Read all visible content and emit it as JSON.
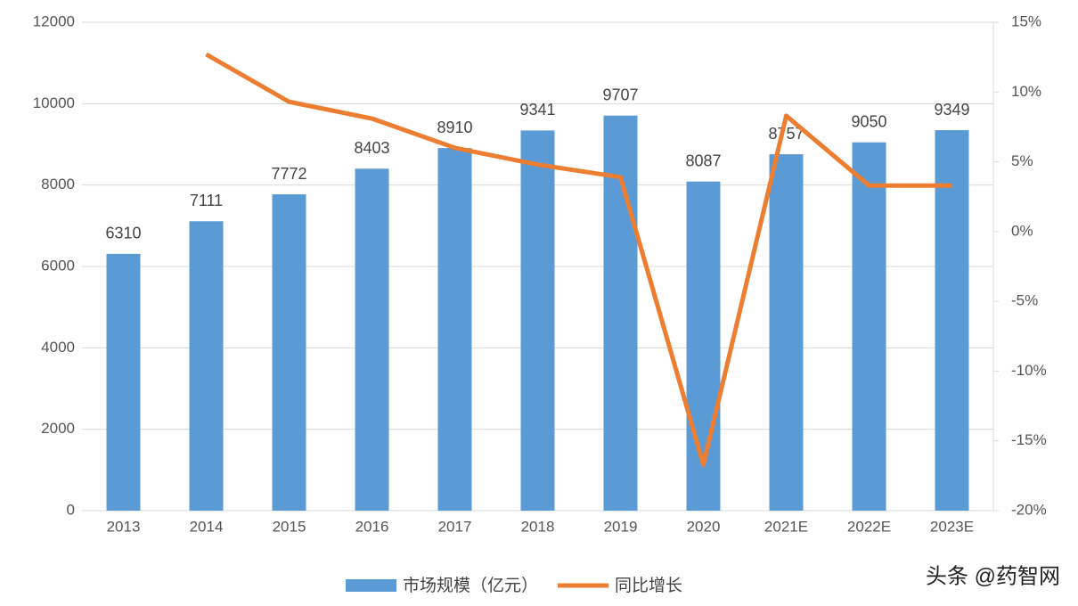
{
  "chart_data": {
    "type": "bar",
    "categories": [
      "2013",
      "2014",
      "2015",
      "2016",
      "2017",
      "2018",
      "2019",
      "2020",
      "2021E",
      "2022E",
      "2023E"
    ],
    "series": [
      {
        "name": "市场规模（亿元）",
        "type": "bar",
        "color": "#5b9bd5",
        "values": [
          6310,
          7111,
          7772,
          8403,
          8910,
          9341,
          9707,
          8087,
          8757,
          9050,
          9349
        ]
      },
      {
        "name": "同比增长",
        "type": "line",
        "axis": "y2",
        "color": "#ed7d31",
        "values": [
          null,
          12.7,
          9.3,
          8.1,
          6.0,
          4.8,
          3.9,
          -16.7,
          8.3,
          3.3,
          3.3
        ]
      }
    ],
    "ylim": [
      0,
      12000
    ],
    "yticks": [
      0,
      2000,
      4000,
      6000,
      8000,
      10000,
      12000
    ],
    "y2lim": [
      -20,
      15
    ],
    "y2ticks": [
      {
        "value": -20,
        "label": "-20%"
      },
      {
        "value": -15,
        "label": "-15%"
      },
      {
        "value": -10,
        "label": "-10%"
      },
      {
        "value": -5,
        "label": "-5%"
      },
      {
        "value": 0,
        "label": "0%"
      },
      {
        "value": 5,
        "label": "5%"
      },
      {
        "value": 10,
        "label": "10%"
      },
      {
        "value": 15,
        "label": "15%"
      }
    ],
    "grid": true,
    "legend": "bottom",
    "watermark": "头条 @药智网"
  }
}
